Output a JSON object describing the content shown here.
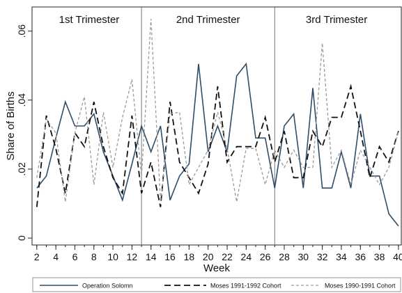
{
  "chart_data": {
    "type": "line",
    "xlabel": "Week",
    "ylabel": "Share of Births",
    "xlim": [
      1.5,
      40.3
    ],
    "ylim": [
      -0.002,
      0.067
    ],
    "xticks": [
      2,
      4,
      6,
      8,
      10,
      12,
      14,
      16,
      18,
      20,
      22,
      24,
      26,
      28,
      30,
      32,
      34,
      36,
      38,
      40
    ],
    "yticks": [
      0,
      0.02,
      0.04,
      0.06
    ],
    "ytick_labels": [
      "0",
      ".02",
      ".04",
      ".06"
    ],
    "grid": false,
    "legend_position": "bottom",
    "vlines": [
      13,
      27
    ],
    "annotations": [
      {
        "text": "1st Trimester",
        "x": 7.5
      },
      {
        "text": "2nd Trimester",
        "x": 20
      },
      {
        "text": "3rd Trimester",
        "x": 33.5
      }
    ],
    "x": [
      2,
      3,
      4,
      5,
      6,
      7,
      8,
      9,
      10,
      11,
      12,
      13,
      14,
      15,
      16,
      17,
      18,
      19,
      20,
      21,
      22,
      23,
      24,
      25,
      26,
      27,
      28,
      29,
      30,
      31,
      32,
      33,
      34,
      35,
      36,
      37,
      38,
      39,
      40
    ],
    "series": [
      {
        "name": "Operation Solomn",
        "style": "solid",
        "color": "#2e4d6b",
        "values": [
          0.0145,
          0.018,
          0.029,
          0.0395,
          0.0325,
          0.0325,
          0.036,
          0.025,
          0.018,
          0.011,
          0.0215,
          0.0325,
          0.025,
          0.0325,
          0.011,
          0.018,
          0.0215,
          0.0505,
          0.025,
          0.0325,
          0.025,
          0.047,
          0.0505,
          0.029,
          0.029,
          0.0145,
          0.0325,
          0.036,
          0.0145,
          0.0435,
          0.0145,
          0.0145,
          0.025,
          0.0145,
          0.036,
          0.018,
          0.018,
          0.007,
          0.0035
        ]
      },
      {
        "name": "Moses 1991-1992 Cohort",
        "style": "dashed",
        "color": "#111111",
        "values": [
          0.009,
          0.0355,
          0.026,
          0.013,
          0.0305,
          0.0265,
          0.0395,
          0.0265,
          0.0175,
          0.013,
          0.0355,
          0.013,
          0.022,
          0.009,
          0.0395,
          0.022,
          0.0175,
          0.013,
          0.0215,
          0.044,
          0.022,
          0.0265,
          0.0265,
          0.0265,
          0.035,
          0.022,
          0.031,
          0.0175,
          0.0175,
          0.031,
          0.0265,
          0.035,
          0.035,
          0.044,
          0.031,
          0.0175,
          0.0265,
          0.022,
          0.031
        ]
      },
      {
        "name": "Moses 1990-1991 Cohort",
        "style": "dotted",
        "color": "#9a9a9a",
        "values": [
          0.0175,
          0.0345,
          0.0305,
          0.0105,
          0.0305,
          0.041,
          0.0155,
          0.0365,
          0.0205,
          0.035,
          0.046,
          0.018,
          0.0635,
          0.0105,
          0.036,
          0.0365,
          0.0155,
          0.0205,
          0.0255,
          0.0365,
          0.026,
          0.0105,
          0.026,
          0.026,
          0.0155,
          0.0255,
          0.0205,
          0.0255,
          0.0205,
          0.0205,
          0.0565,
          0.0205,
          0.0255,
          0.0155,
          0.0255,
          0.0205,
          0.0155,
          0.0205,
          0.031
        ]
      }
    ]
  }
}
